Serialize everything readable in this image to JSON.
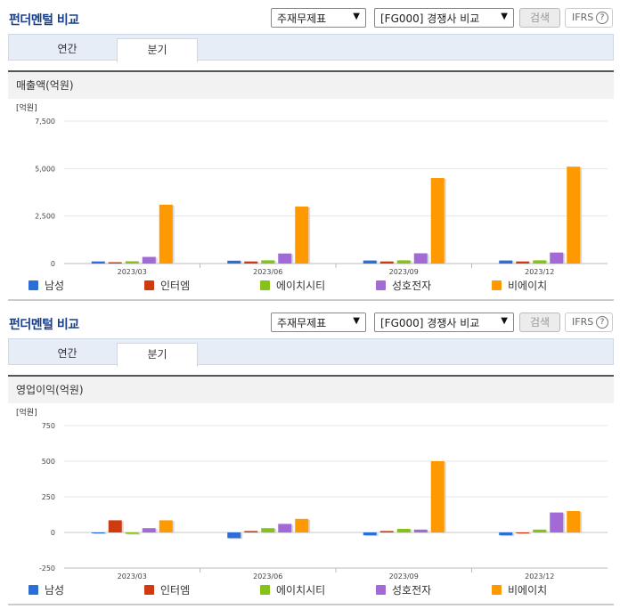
{
  "panels": [
    {
      "title": "펀더멘털 비교",
      "select1": "주재무제표",
      "select2": "[FG000] 경쟁사 비교",
      "search_label": "검색",
      "ifrs_label": "IFRS",
      "help_glyph": "?",
      "tabs": [
        {
          "label": "연간"
        },
        {
          "label": "분기"
        }
      ],
      "active_tab": 1,
      "section_title": "매출액(억원)"
    },
    {
      "title": "펀더멘털 비교",
      "select1": "주재무제표",
      "select2": "[FG000] 경쟁사 비교",
      "search_label": "검색",
      "ifrs_label": "IFRS",
      "help_glyph": "?",
      "tabs": [
        {
          "label": "연간"
        },
        {
          "label": "분기"
        }
      ],
      "active_tab": 1,
      "section_title": "영업이익(억원)"
    }
  ],
  "legend": [
    {
      "name": "남성",
      "color": "#2b6fd6"
    },
    {
      "name": "인터엠",
      "color": "#d03a10"
    },
    {
      "name": "에이치시티",
      "color": "#86c21a"
    },
    {
      "name": "성호전자",
      "color": "#a26ad6"
    },
    {
      "name": "비에이치",
      "color": "#ff9900"
    }
  ],
  "chart_data": [
    {
      "type": "bar",
      "unit_label": "[억원]",
      "categories": [
        "2023/03",
        "2023/06",
        "2023/09",
        "2023/12"
      ],
      "ylim": [
        0,
        7500
      ],
      "yticks": [
        0,
        2500,
        5000,
        7500
      ],
      "ytick_labels": [
        "0",
        "2,500",
        "5,000",
        "7,500"
      ],
      "series": [
        {
          "name": "남성",
          "values": [
            110,
            150,
            160,
            160
          ]
        },
        {
          "name": "인터엠",
          "values": [
            70,
            110,
            110,
            110
          ]
        },
        {
          "name": "에이치시티",
          "values": [
            120,
            170,
            170,
            170
          ]
        },
        {
          "name": "성호전자",
          "values": [
            350,
            530,
            540,
            580
          ]
        },
        {
          "name": "비에이치",
          "values": [
            3100,
            3000,
            4500,
            5100
          ]
        }
      ]
    },
    {
      "type": "bar",
      "unit_label": "[억원]",
      "categories": [
        "2023/03",
        "2023/06",
        "2023/09",
        "2023/12"
      ],
      "ylim": [
        -250,
        750
      ],
      "yticks": [
        -250,
        0,
        250,
        500,
        750
      ],
      "ytick_labels": [
        "-250",
        "0",
        "250",
        "500",
        "750"
      ],
      "series": [
        {
          "name": "남성",
          "values": [
            0,
            -40,
            -20,
            -20
          ]
        },
        {
          "name": "인터엠",
          "values": [
            85,
            10,
            10,
            0
          ]
        },
        {
          "name": "에이치시티",
          "values": [
            -10,
            30,
            25,
            20
          ]
        },
        {
          "name": "성호전자",
          "values": [
            30,
            60,
            20,
            140
          ]
        },
        {
          "name": "비에이치",
          "values": [
            85,
            95,
            500,
            150
          ]
        }
      ]
    }
  ]
}
